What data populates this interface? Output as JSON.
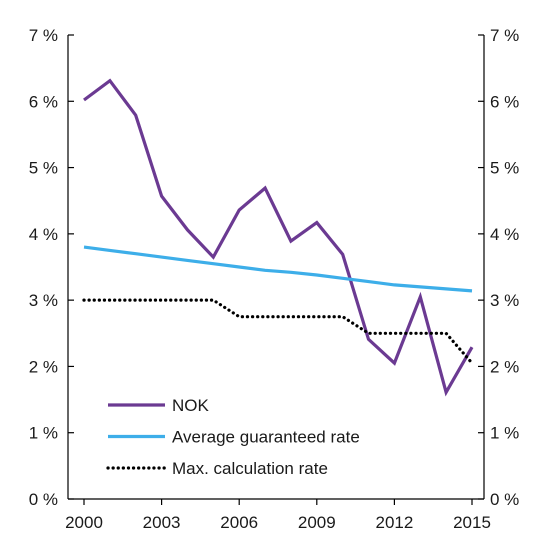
{
  "chart_data": {
    "type": "line",
    "x": [
      2000,
      2001,
      2002,
      2003,
      2004,
      2005,
      2006,
      2007,
      2008,
      2009,
      2010,
      2011,
      2012,
      2013,
      2014,
      2015
    ],
    "x_ticks": [
      "2000",
      "2003",
      "2006",
      "2009",
      "2012",
      "2015"
    ],
    "xlim": [
      2000,
      2015
    ],
    "ylim": [
      0,
      7
    ],
    "y_ticks": [
      "0 %",
      "1 %",
      "2 %",
      "3 %",
      "4 %",
      "5 %",
      "6 %",
      "7 %"
    ],
    "y_ticks_right": [
      "0 %",
      "1 %",
      "2 %",
      "3 %",
      "4 %",
      "5 %",
      "6 %",
      "7 %"
    ],
    "grid": false,
    "legend_position": "bottom-left",
    "series": [
      {
        "name": "NOK",
        "color": "#6b3a92",
        "style": "solid",
        "values": [
          6.02,
          6.31,
          5.79,
          4.57,
          4.06,
          3.65,
          4.36,
          4.69,
          3.89,
          4.17,
          3.69,
          2.41,
          2.05,
          3.05,
          1.61,
          2.29
        ]
      },
      {
        "name": "Average guaranteed rate",
        "color": "#3daee9",
        "style": "solid",
        "values": [
          3.8,
          3.75,
          3.7,
          3.65,
          3.6,
          3.55,
          3.5,
          3.45,
          3.42,
          3.38,
          3.33,
          3.28,
          3.23,
          3.2,
          3.17,
          3.14
        ]
      },
      {
        "name": "Max. calculation rate",
        "color": "#000000",
        "style": "dotted",
        "values": [
          3.0,
          3.0,
          3.0,
          3.0,
          3.0,
          3.0,
          2.75,
          2.75,
          2.75,
          2.75,
          2.75,
          2.5,
          2.5,
          2.5,
          2.5,
          2.05
        ]
      }
    ]
  }
}
